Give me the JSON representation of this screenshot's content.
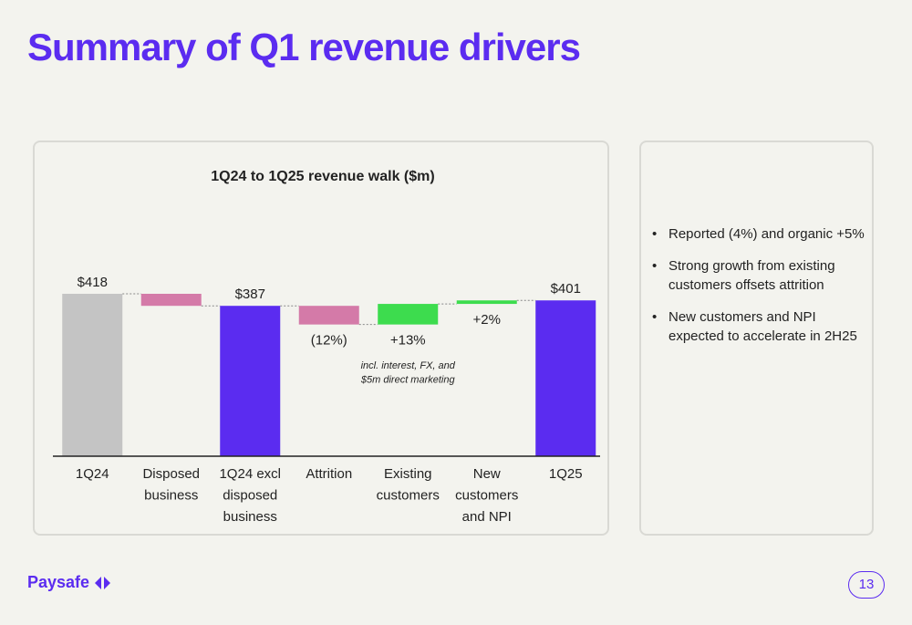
{
  "page": {
    "title": "Summary of Q1 revenue drivers",
    "page_number": "13",
    "logo_text": "Paysafe"
  },
  "colors": {
    "brand": "#5b2cf0",
    "total_bar": "#5b2cf0",
    "start_bar": "#c4c4c4",
    "negative_bar": "#d47aa8",
    "positive_bar": "#3ddc4e"
  },
  "chart_data": {
    "type": "bar",
    "subtype": "waterfall",
    "title": "1Q24 to 1Q25 revenue walk ($m)",
    "categories": [
      "1Q24",
      "Disposed business",
      "1Q24 excl disposed business",
      "Attrition",
      "Existing customers",
      "New customers and NPI",
      "1Q25"
    ],
    "category_lines": [
      [
        "1Q24"
      ],
      [
        "Disposed",
        "business"
      ],
      [
        "1Q24 excl",
        "disposed",
        "business"
      ],
      [
        "Attrition"
      ],
      [
        "Existing",
        "customers"
      ],
      [
        "New",
        "customers",
        "and NPI"
      ],
      [
        "1Q25"
      ]
    ],
    "steps": [
      {
        "category": "1Q24",
        "kind": "total",
        "start": 0,
        "end": 418,
        "label": "$418"
      },
      {
        "category": "Disposed business",
        "kind": "decrease",
        "start": 418,
        "end": 387,
        "label": ""
      },
      {
        "category": "1Q24 excl disposed business",
        "kind": "total",
        "start": 0,
        "end": 387,
        "label": "$387"
      },
      {
        "category": "Attrition",
        "kind": "decrease",
        "start": 387,
        "end": 339,
        "label": "(12%)"
      },
      {
        "category": "Existing customers",
        "kind": "increase",
        "start": 339,
        "end": 392,
        "label": "+13%"
      },
      {
        "category": "New customers and NPI",
        "kind": "increase",
        "start": 392,
        "end": 401,
        "label": "+2%"
      },
      {
        "category": "1Q25",
        "kind": "total",
        "start": 0,
        "end": 401,
        "label": "$401"
      }
    ],
    "annotation_lines": [
      "incl. interest, FX, and",
      "$5m direct marketing"
    ],
    "legend": "none",
    "grid": false
  },
  "bullets": [
    "Reported (4%) and organic +5%",
    "Strong growth from existing customers offsets attrition",
    "New customers and NPI expected to accelerate in 2H25"
  ]
}
